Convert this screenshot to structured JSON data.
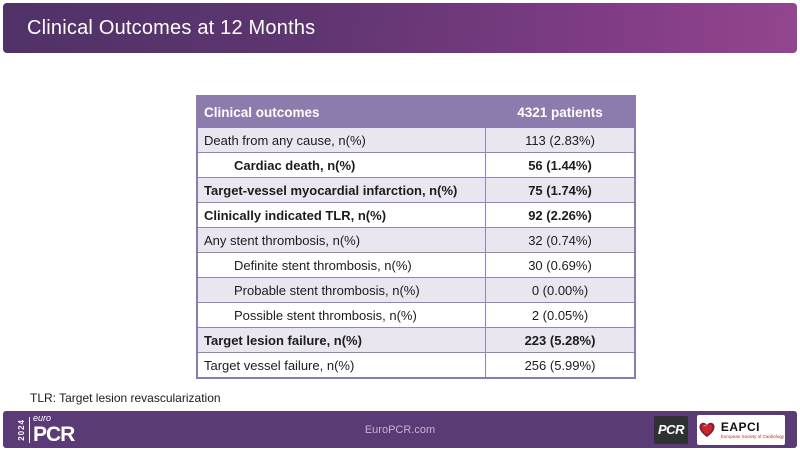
{
  "slide": {
    "title": "Clinical Outcomes at 12 Months",
    "footnote": "TLR: Target lesion revascularization"
  },
  "table": {
    "header": {
      "label": "Clinical outcomes",
      "value": "4321 patients"
    },
    "rows": [
      {
        "label": "Death from any cause, n(%)",
        "value": "113 (2.83%)",
        "bold": false,
        "indent": 0
      },
      {
        "label": "Cardiac death, n(%)",
        "value": "56 (1.44%)",
        "bold": true,
        "indent": 1
      },
      {
        "label": "Target-vessel myocardial infarction, n(%)",
        "value": "75 (1.74%)",
        "bold": true,
        "indent": 0
      },
      {
        "label": "Clinically indicated TLR, n(%)",
        "value": "92 (2.26%)",
        "bold": true,
        "indent": 0
      },
      {
        "label": "Any stent thrombosis, n(%)",
        "value": "32 (0.74%)",
        "bold": false,
        "indent": 0
      },
      {
        "label": "Definite stent thrombosis, n(%)",
        "value": "30 (0.69%)",
        "bold": false,
        "indent": 1
      },
      {
        "label": "Probable stent thrombosis, n(%)",
        "value": "0 (0.00%)",
        "bold": false,
        "indent": 1
      },
      {
        "label": "Possible stent thrombosis, n(%)",
        "value": "2 (0.05%)",
        "bold": false,
        "indent": 1
      },
      {
        "label": "Target lesion failure, n(%)",
        "value": "223 (5.28%)",
        "bold": true,
        "indent": 0
      },
      {
        "label": "Target vessel failure, n(%)",
        "value": "256 (5.99%)",
        "bold": false,
        "indent": 0
      }
    ]
  },
  "footer": {
    "website": "EuroPCR.com",
    "europcr_logo": {
      "year": "2024",
      "euro": "euro",
      "pcr": "PCR"
    },
    "pcr_logo": "PCR",
    "eapci_logo": {
      "name": "EAPCI",
      "tagline": "European Society of Cardiology"
    }
  },
  "colors": {
    "topbar_gradient_left": "#503267",
    "topbar_gradient_right": "#94458f",
    "table_header_bg": "#8c7bad",
    "table_border": "#8c7bad",
    "row_shaded_bg": "#e9e6f0",
    "bottombar_bg": "#5b3b76",
    "website_text": "#c5b2d9",
    "eapci_red": "#c1272d"
  }
}
